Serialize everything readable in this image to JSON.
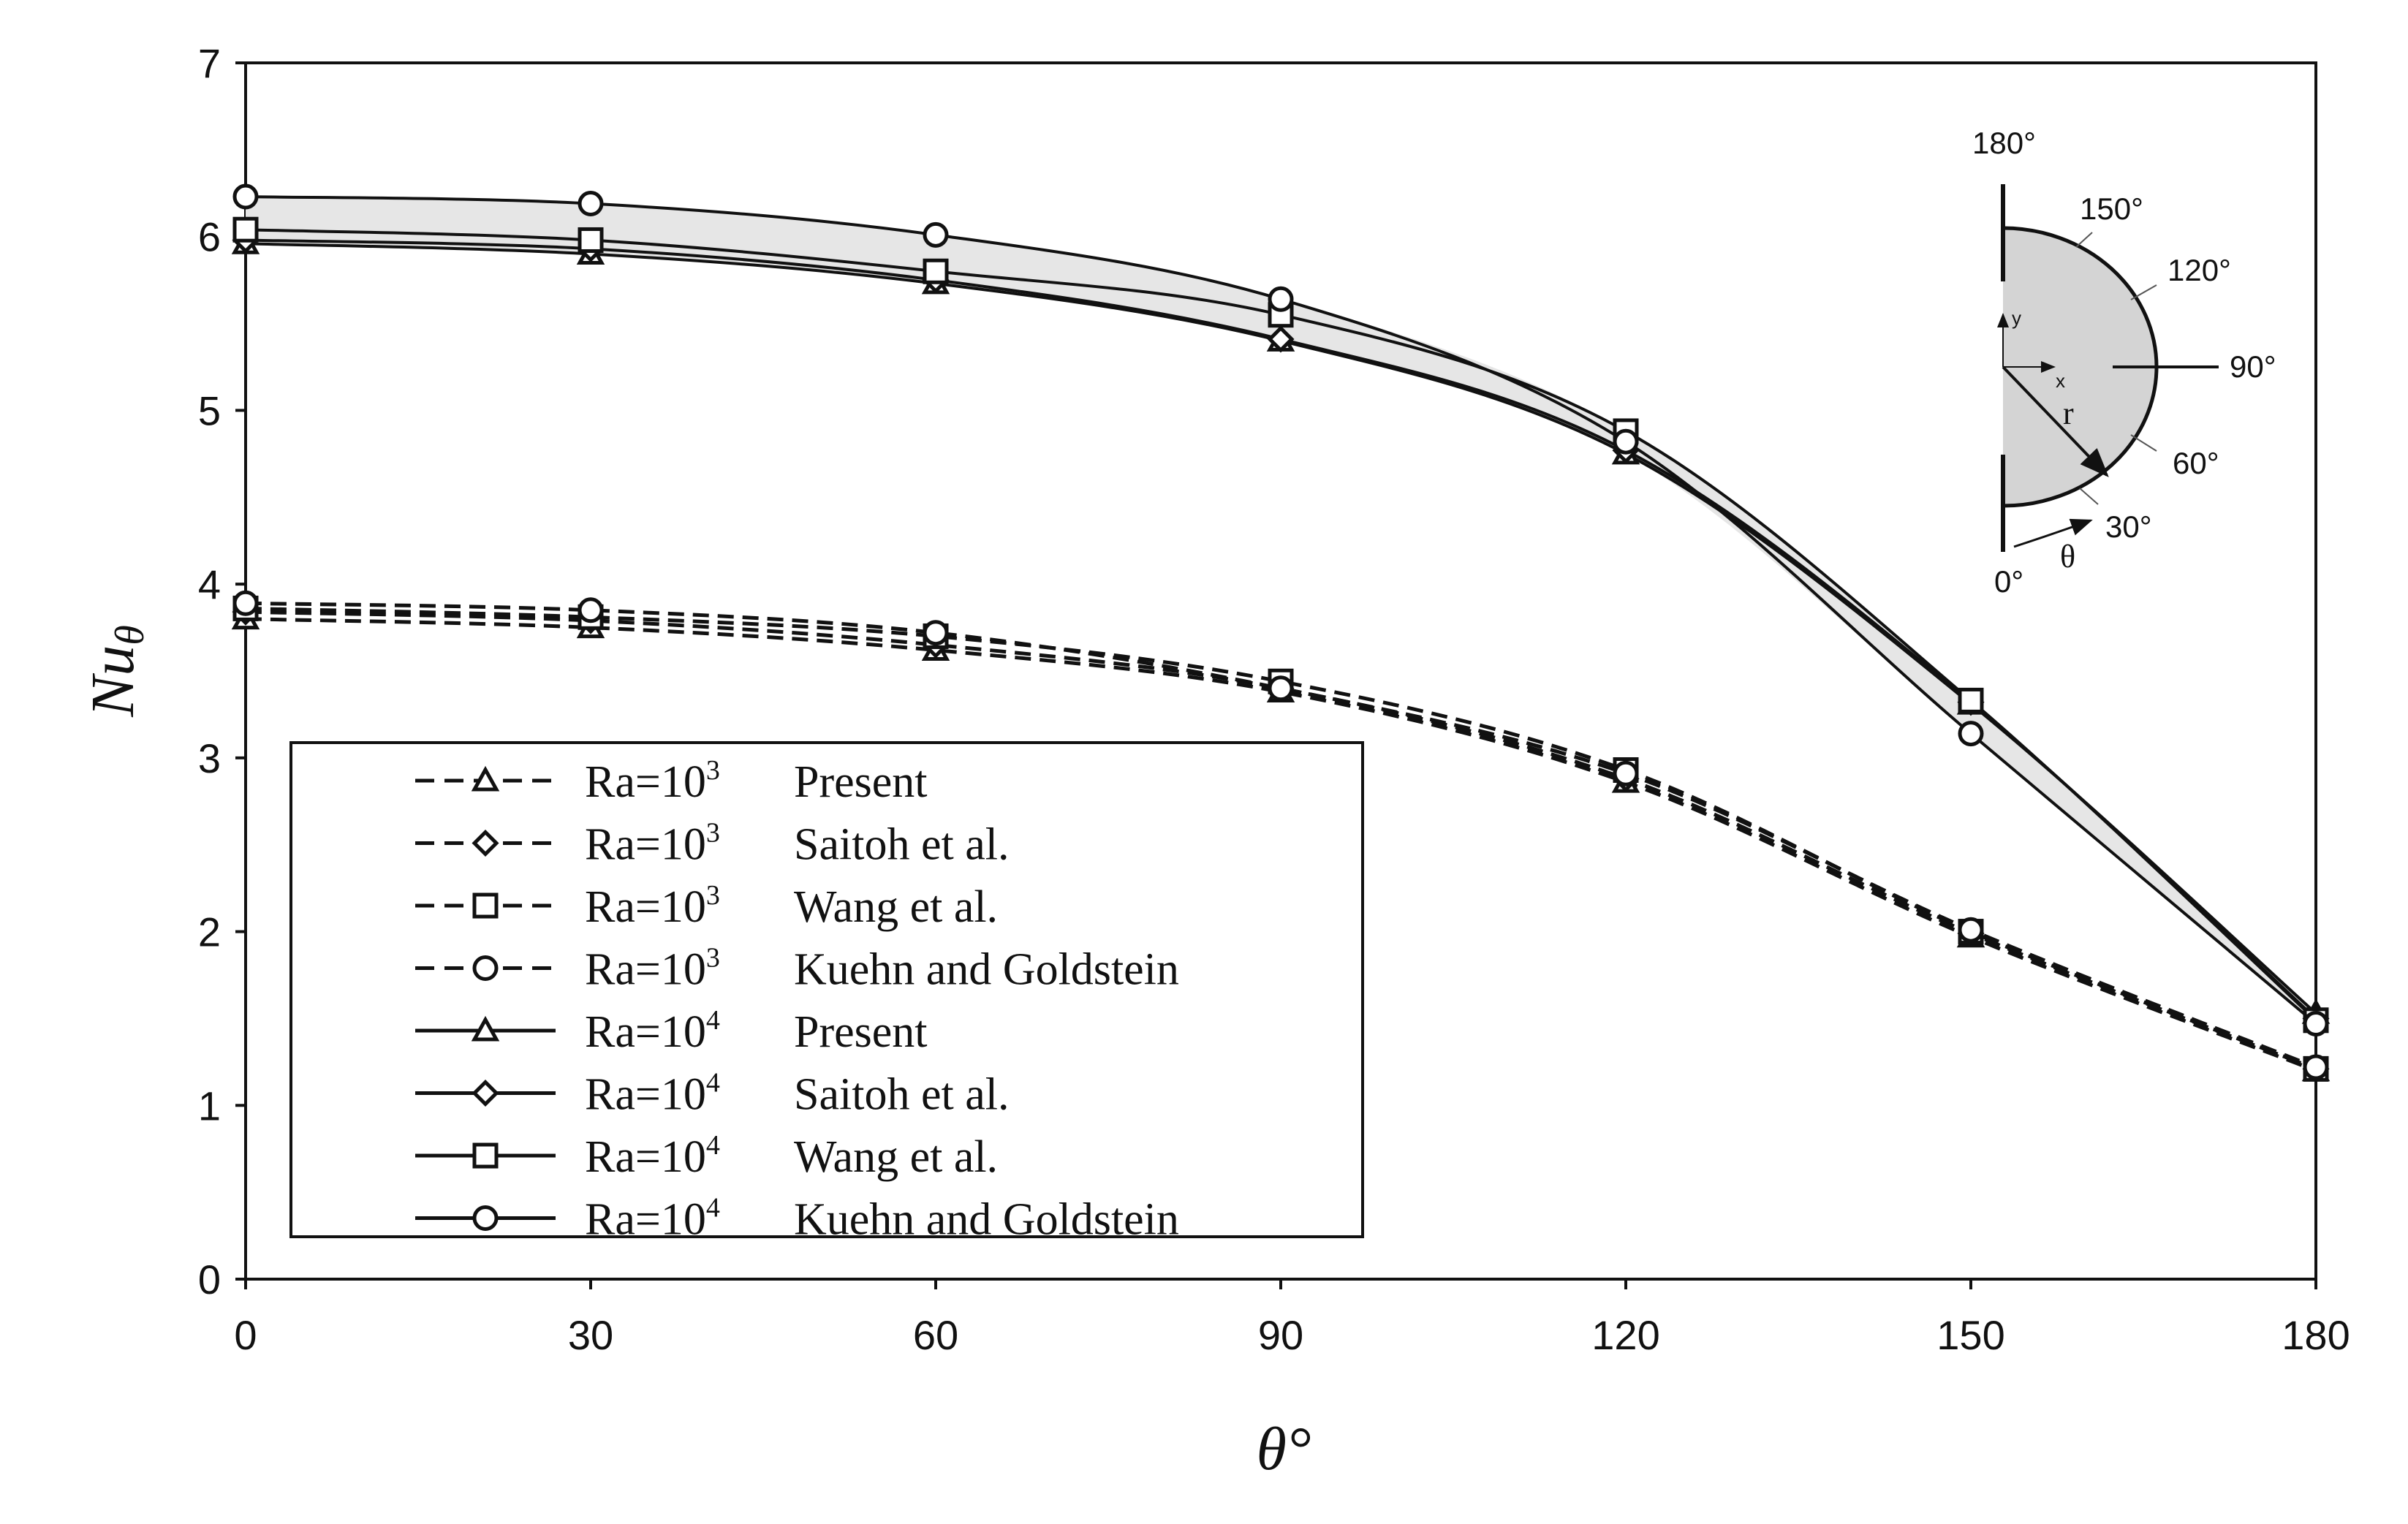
{
  "chart_data": {
    "type": "line",
    "title": "",
    "xlabel": "θ°",
    "ylabel_main": "Nu",
    "ylabel_sub": "θ",
    "x": [
      0,
      30,
      60,
      90,
      120,
      150,
      180
    ],
    "xlim": [
      0,
      180
    ],
    "ylim": [
      0,
      7
    ],
    "x_ticks": [
      "0",
      "30",
      "60",
      "90",
      "120",
      "150",
      "180"
    ],
    "y_ticks": [
      "0",
      "1",
      "2",
      "3",
      "4",
      "5",
      "6",
      "7"
    ],
    "grid": false,
    "legend_position": "bottom-left",
    "series": [
      {
        "ra": "Ra=10",
        "exp": "3",
        "source": "Present",
        "style": "dashed",
        "marker": "triangle",
        "values": [
          3.8,
          3.75,
          3.62,
          3.38,
          2.86,
          1.97,
          1.2
        ]
      },
      {
        "ra": "Ra=10",
        "exp": "3",
        "source": "Saitoh et al.",
        "style": "dashed",
        "marker": "diamond",
        "values": [
          3.84,
          3.79,
          3.65,
          3.4,
          2.88,
          1.99,
          1.21
        ]
      },
      {
        "ra": "Ra=10",
        "exp": "3",
        "source": "Wang et al.",
        "style": "dashed",
        "marker": "square",
        "values": [
          3.86,
          3.81,
          3.7,
          3.44,
          2.93,
          2.0,
          1.21
        ]
      },
      {
        "ra": "Ra=10",
        "exp": "3",
        "source": "Kuehn and Goldstein",
        "style": "dashed",
        "marker": "circle",
        "values": [
          3.89,
          3.85,
          3.72,
          3.4,
          2.91,
          2.01,
          1.22
        ]
      },
      {
        "ra": "Ra=10",
        "exp": "4",
        "source": "Present",
        "style": "solid",
        "marker": "triangle",
        "values": [
          5.96,
          5.9,
          5.73,
          5.4,
          4.75,
          3.31,
          1.53
        ]
      },
      {
        "ra": "Ra=10",
        "exp": "4",
        "source": "Saitoh et al.",
        "style": "solid",
        "marker": "diamond",
        "values": [
          5.98,
          5.93,
          5.75,
          5.41,
          4.77,
          3.32,
          1.5
        ]
      },
      {
        "ra": "Ra=10",
        "exp": "4",
        "source": "Wang et al.",
        "style": "solid",
        "marker": "square",
        "values": [
          6.04,
          5.98,
          5.8,
          5.55,
          4.88,
          3.33,
          1.49
        ]
      },
      {
        "ra": "Ra=10",
        "exp": "4",
        "source": "Kuehn and Goldstein",
        "style": "solid",
        "marker": "circle",
        "values": [
          6.23,
          6.19,
          6.01,
          5.64,
          4.82,
          3.14,
          1.47
        ]
      }
    ],
    "inset": {
      "angle_labels": [
        "180°",
        "150°",
        "120°",
        "90°",
        "60°",
        "30°",
        "0°"
      ],
      "x_label": "x",
      "y_label": "y",
      "r_label": "r",
      "theta_label": "θ"
    }
  },
  "colors": {
    "ink": "#111111",
    "fill": "#d4d4d4"
  }
}
